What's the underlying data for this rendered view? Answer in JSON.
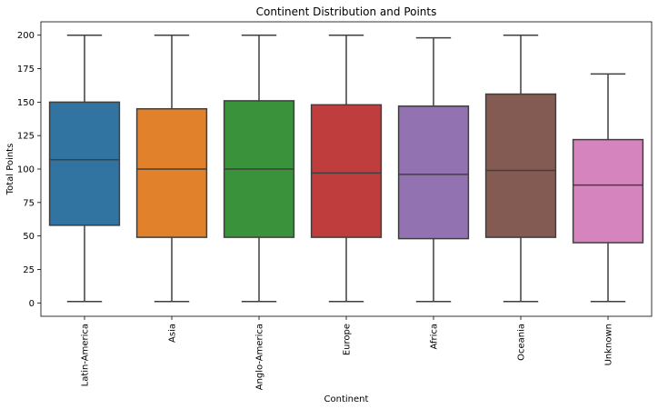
{
  "chart_data": {
    "type": "box",
    "title": "Continent Distribution and Points",
    "xlabel": "Continent",
    "ylabel": "Total Points",
    "ylim": [
      -10,
      210
    ],
    "yticks": [
      0,
      25,
      50,
      75,
      100,
      125,
      150,
      175,
      200
    ],
    "grid": false,
    "categories": [
      "Latin-America",
      "Asia",
      "Anglo-America",
      "Europe",
      "Africa",
      "Oceania",
      "Unknown"
    ],
    "boxes": [
      {
        "category": "Latin-America",
        "min": 1,
        "q1": 58,
        "median": 107,
        "q3": 150,
        "max": 200,
        "color": "#3274a1"
      },
      {
        "category": "Asia",
        "min": 1,
        "q1": 49,
        "median": 100,
        "q3": 145,
        "max": 200,
        "color": "#e1812c"
      },
      {
        "category": "Anglo-America",
        "min": 1,
        "q1": 49,
        "median": 100,
        "q3": 151,
        "max": 200,
        "color": "#3a923a"
      },
      {
        "category": "Europe",
        "min": 1,
        "q1": 49,
        "median": 97,
        "q3": 148,
        "max": 200,
        "color": "#c03d3e"
      },
      {
        "category": "Africa",
        "min": 1,
        "q1": 48,
        "median": 96,
        "q3": 147,
        "max": 198,
        "color": "#9372b2"
      },
      {
        "category": "Oceania",
        "min": 1,
        "q1": 49,
        "median": 99,
        "q3": 156,
        "max": 200,
        "color": "#845b53"
      },
      {
        "category": "Unknown",
        "min": 1,
        "q1": 45,
        "median": 88,
        "q3": 122,
        "max": 171,
        "color": "#d684bd"
      }
    ]
  }
}
